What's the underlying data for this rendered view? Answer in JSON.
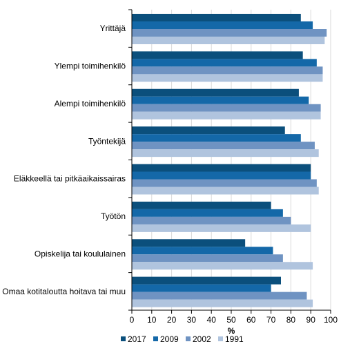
{
  "chart_data": {
    "type": "bar",
    "orientation": "horizontal",
    "categories": [
      "Yrittäjä",
      "Ylempi toimihenkilö",
      "Alempi toimihenkilö",
      "Työntekijä",
      "Eläkkeellä tai pitkäaikaissairas",
      "Työtön",
      "Opiskelija tai koululainen",
      "Omaa kotitaloutta hoitava tai muu"
    ],
    "series": [
      {
        "name": "2017",
        "color": "#0b4f7c",
        "values": [
          85,
          86,
          84,
          77,
          90,
          70,
          57,
          75
        ]
      },
      {
        "name": "2009",
        "color": "#1468a8",
        "values": [
          91,
          93,
          89,
          85,
          90,
          76,
          71,
          70
        ]
      },
      {
        "name": "2002",
        "color": "#6f93c2",
        "values": [
          98,
          96,
          95,
          92,
          93,
          80,
          76,
          88
        ]
      },
      {
        "name": "1991",
        "color": "#b0c4de",
        "values": [
          97,
          96,
          95,
          94,
          94,
          90,
          91,
          91
        ]
      }
    ],
    "xlabel": "%",
    "xlim": [
      0,
      100
    ],
    "xticks": [
      "0",
      "10",
      "20",
      "30",
      "40",
      "50",
      "60",
      "70",
      "80",
      "90",
      "100"
    ],
    "grid": true,
    "legend_position": "bottom"
  }
}
